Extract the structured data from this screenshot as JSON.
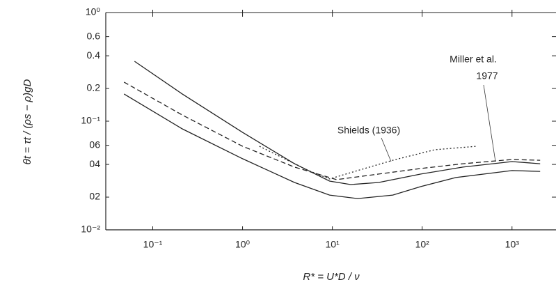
{
  "chart_data": {
    "type": "line",
    "xlabel": "R* = U*D / ν",
    "ylabel": "θt = τt / (ρs − ρ)gD",
    "annotations": [
      "Shields (1936)",
      "Miller et al.",
      "1977"
    ],
    "log_x": true,
    "log_y": true,
    "xlim": [
      0.03,
      3500
    ],
    "ylim": [
      0.01,
      1
    ],
    "xticks": [
      {
        "value": 0.1,
        "label": "10⁻¹"
      },
      {
        "value": 1,
        "label": "10⁰"
      },
      {
        "value": 10,
        "label": "10¹"
      },
      {
        "value": 100,
        "label": "10²"
      },
      {
        "value": 1000,
        "label": "10³"
      }
    ],
    "yticks": [
      {
        "value": 1,
        "label": "10⁰"
      },
      0.6,
      0.4,
      0.2,
      {
        "value": 0.1,
        "label": "10⁻¹"
      },
      {
        "value": 0.06,
        "label": "06"
      },
      {
        "value": 0.04,
        "label": "04"
      },
      {
        "value": 0.02,
        "label": "02"
      },
      {
        "value": 0.01,
        "label": "10⁻²"
      }
    ],
    "series": [
      {
        "color": "#222222",
        "style": "solid",
        "x": [
          0.0627,
          0.213,
          1,
          3.79,
          9.3,
          16,
          32.8,
          96.5,
          284,
          1000,
          2055
        ],
        "values": [
          0.356,
          0.178,
          0.0789,
          0.0406,
          0.0281,
          0.0261,
          0.0273,
          0.0326,
          0.0378,
          0.0425,
          0.0406
        ]
      },
      {
        "color": "#222222",
        "style": "dashed",
        "x": [
          0.0479,
          0.213,
          1,
          3.79,
          11.1,
          32.8,
          96.5,
          284,
          1000,
          2055
        ],
        "values": [
          0.229,
          0.114,
          0.0588,
          0.0378,
          0.029,
          0.0326,
          0.0367,
          0.0406,
          0.0444,
          0.0437
        ]
      },
      {
        "color": "#222222",
        "style": "solid",
        "x": [
          0.0479,
          0.213,
          1,
          3.79,
          9.3,
          19.1,
          47,
          96.5,
          237,
          1000,
          2055
        ],
        "values": [
          0.178,
          0.085,
          0.0451,
          0.0273,
          0.0209,
          0.0194,
          0.0209,
          0.025,
          0.0303,
          0.0351,
          0.0345
        ]
      },
      {
        "color": "#222222",
        "style": "dotted",
        "x": [
          1.54,
          2.64,
          5.43,
          9.3,
          19.1,
          47,
          138,
          406
        ],
        "values": [
          0.0588,
          0.0471,
          0.0351,
          0.0294,
          0.0351,
          0.0437,
          0.0546,
          0.0588
        ]
      }
    ]
  }
}
